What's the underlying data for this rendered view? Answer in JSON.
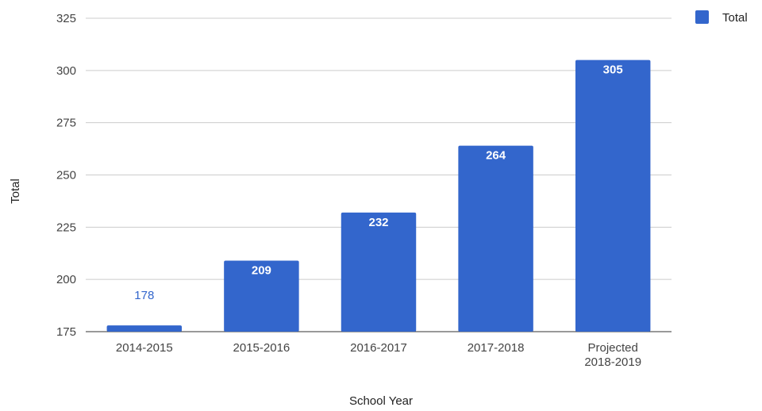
{
  "chart_data": {
    "type": "bar",
    "xlabel": "School Year",
    "ylabel": "Total",
    "ylim": [
      175,
      325
    ],
    "yticks": [
      175,
      200,
      225,
      250,
      275,
      300,
      325
    ],
    "grid": true,
    "legend_position": "top-right",
    "categories": [
      [
        "2014-2015"
      ],
      [
        "2015-2016"
      ],
      [
        "2016-2017"
      ],
      [
        "2017-2018"
      ],
      [
        "Projected",
        "2018-2019"
      ]
    ],
    "series": [
      {
        "name": "Total",
        "color": "#3366cc",
        "values": [
          178,
          209,
          232,
          264,
          305
        ]
      }
    ]
  }
}
